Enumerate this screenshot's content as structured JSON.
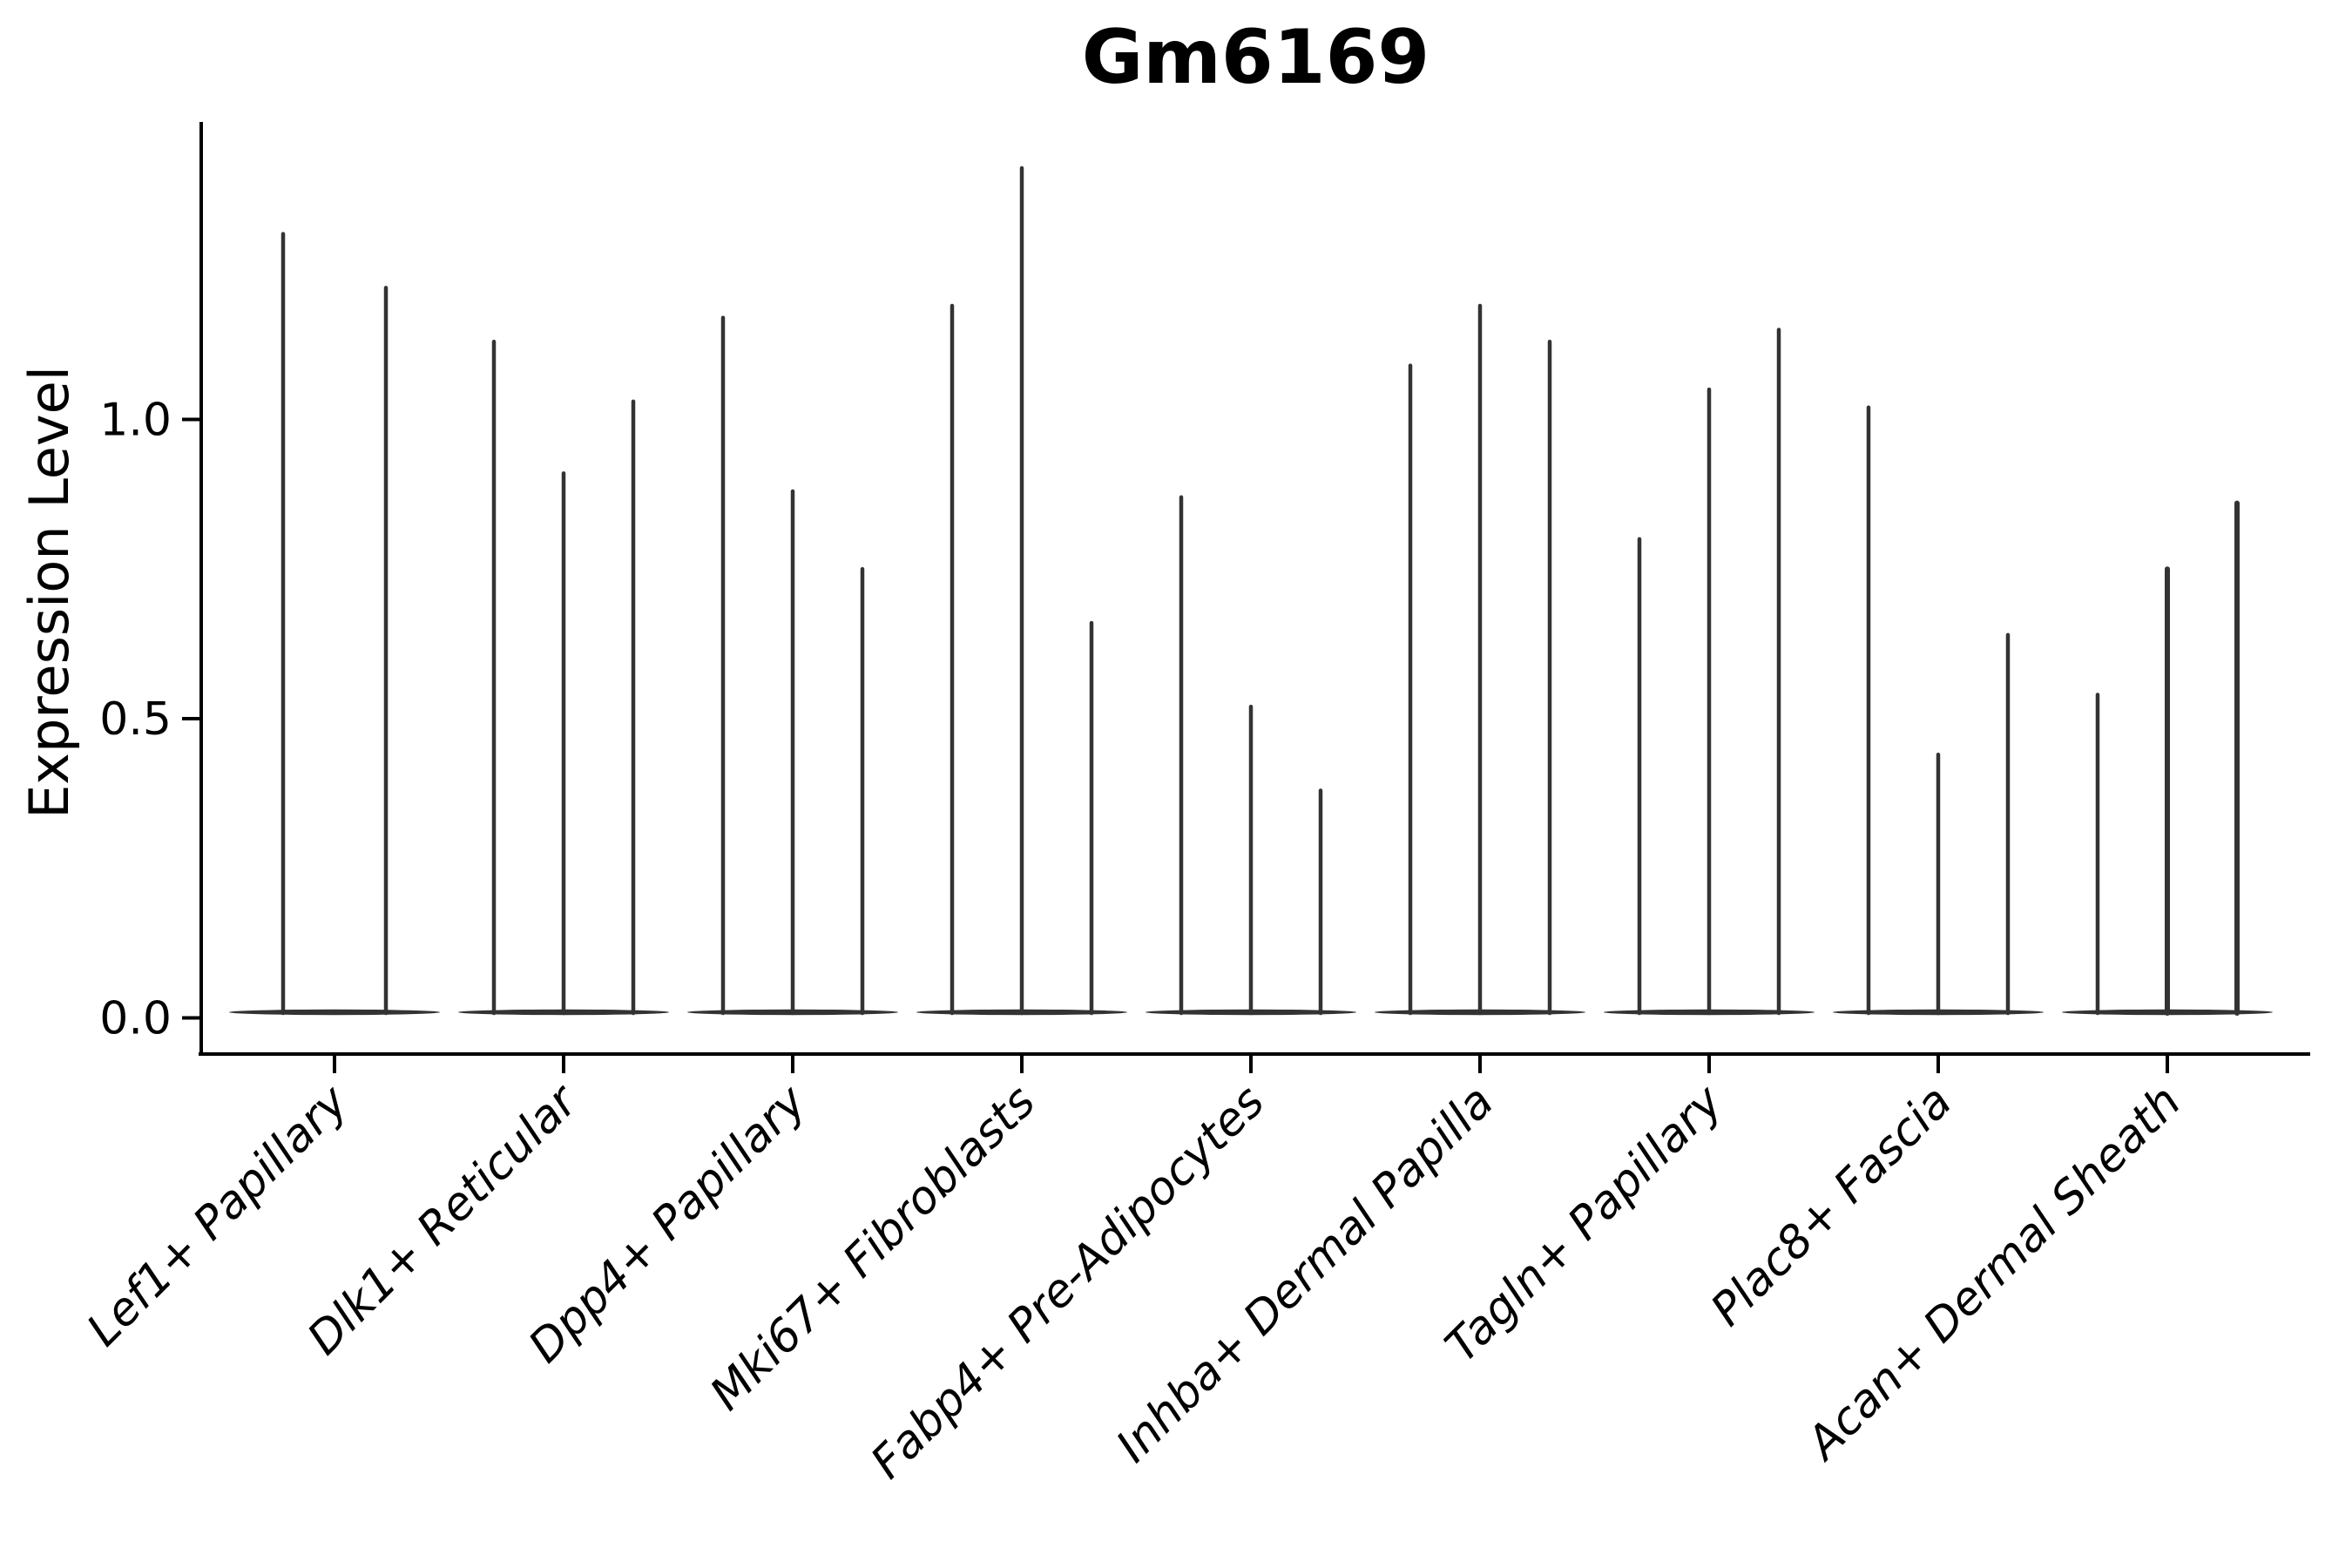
{
  "chart_data": {
    "type": "violin",
    "title": "Gm6169",
    "ylabel": "Expression Level",
    "xlabel": "",
    "ylim": [
      -0.06,
      1.5
    ],
    "yticks": [
      0.0,
      0.5,
      1.0
    ],
    "ytick_labels": [
      "0.0",
      "0.5",
      "1.0"
    ],
    "grid": false,
    "legend_position": "none",
    "violin_style": "very thin spikes rising from a flat baseline at 0 (sparse expression data)",
    "categories": [
      "Lef1+ Papillary",
      "Dlk1+ Reticular",
      "Dpp4+ Papillary",
      "Mki67+ Fibroblasts",
      "Fabp4+ Pre-Adipocytes",
      "Inhba+ Dermal Papilla",
      "Tagln+ Papillary",
      "Plac8+ Fascia",
      "Acan+ Dermal Sheath"
    ],
    "groups": [
      {
        "category": "Lef1+ Papillary",
        "violins": [
          {
            "max": 1.31
          },
          {
            "max": 1.22
          }
        ]
      },
      {
        "category": "Dlk1+ Reticular",
        "violins": [
          {
            "max": 1.13
          },
          {
            "max": 0.91
          },
          {
            "max": 1.03
          }
        ]
      },
      {
        "category": "Dpp4+ Papillary",
        "violins": [
          {
            "max": 1.17
          },
          {
            "max": 0.88
          },
          {
            "max": 0.75
          }
        ]
      },
      {
        "category": "Mki67+ Fibroblasts",
        "violins": [
          {
            "max": 1.19
          },
          {
            "max": 1.42
          },
          {
            "max": 0.66
          }
        ]
      },
      {
        "category": "Fabp4+ Pre-Adipocytes",
        "violins": [
          {
            "max": 0.87
          },
          {
            "max": 0.52
          },
          {
            "max": 0.38
          }
        ]
      },
      {
        "category": "Inhba+ Dermal Papilla",
        "violins": [
          {
            "max": 1.09
          },
          {
            "max": 1.19
          },
          {
            "max": 1.13
          }
        ]
      },
      {
        "category": "Tagln+ Papillary",
        "violins": [
          {
            "max": 0.8
          },
          {
            "max": 1.05
          },
          {
            "max": 1.15
          }
        ]
      },
      {
        "category": "Plac8+ Fascia",
        "violins": [
          {
            "max": 1.02
          },
          {
            "max": 0.44
          },
          {
            "max": 0.64
          }
        ]
      },
      {
        "category": "Acan+ Dermal Sheath",
        "violins": [
          {
            "max": 0.54
          },
          {
            "max": 0.75,
            "w": 6
          },
          {
            "max": 0.86,
            "w": 6
          }
        ]
      }
    ],
    "colors": {
      "violin": "#333333",
      "axis": "#000000",
      "text": "#000000",
      "background": "#ffffff"
    }
  }
}
